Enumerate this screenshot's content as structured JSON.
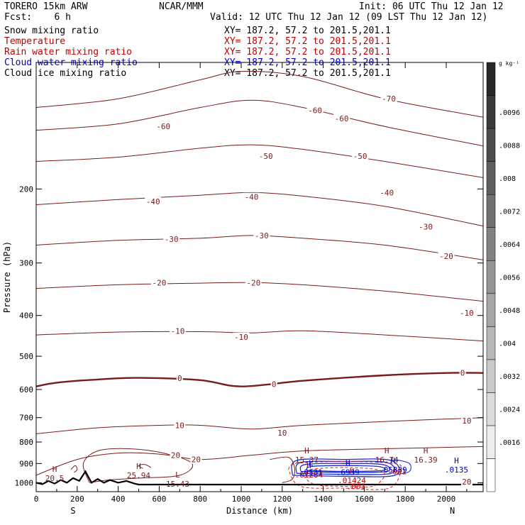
{
  "header": {
    "model": "TORERO 15km ARW",
    "org": "NCAR/MMM",
    "init": "Init: 06 UTC Thu 12 Jan 12",
    "fcst": "Fcst:    6 h",
    "valid": "Valid: 12 UTC Thu 12 Jan 12 (09 LST Thu 12 Jan 12)",
    "fields": [
      {
        "name": "Snow mixing ratio",
        "xy": "XY= 187.2, 57.2 to 201.5,201.1",
        "color": "#000000"
      },
      {
        "name": "Temperature",
        "xy": "XY= 187.2, 57.2 to 201.5,201.1",
        "color": "#c00000"
      },
      {
        "name": "Rain water mixing ratio",
        "xy": "XY= 187.2, 57.2 to 201.5,201.1",
        "color": "#c00000"
      },
      {
        "name": "Cloud water mixing ratio",
        "xy": "XY= 187.2, 57.2 to 201.5,201.1",
        "color": "#0000c0"
      },
      {
        "name": "Cloud ice mixing ratio",
        "xy": "XY= 187.2, 57.2 to 201.5,201.1",
        "color": "#000000"
      }
    ]
  },
  "chart_data": {
    "type": "contour",
    "xlabel": "Distance (km)",
    "ylabel": "Pressure (hPa)",
    "x_ticks": [
      0,
      200,
      400,
      600,
      800,
      1000,
      1200,
      1400,
      1600,
      1800,
      2000
    ],
    "y_ticks": [
      200,
      300,
      400,
      500,
      600,
      700,
      800,
      900,
      1000
    ],
    "xlim": [
      0,
      2180
    ],
    "ylim": [
      1050,
      100
    ],
    "y_scale": "log",
    "x_end_labels": {
      "left": "S",
      "right": "N"
    },
    "colorbar": {
      "unit": "g kg⁻¹",
      "ticks": [
        ".0016",
        ".0024",
        ".0032",
        ".004",
        ".0048",
        ".0056",
        ".0064",
        ".0072",
        ".008",
        ".0088",
        ".0096"
      ]
    },
    "temperature_contours": [
      {
        "label": "-70",
        "label_at": [
          1720,
          122
        ],
        "points": [
          [
            0,
            128
          ],
          [
            400,
            122
          ],
          [
            800,
            110
          ],
          [
            1000,
            105
          ],
          [
            1300,
            108
          ],
          [
            1700,
            122
          ],
          [
            2180,
            135
          ]
        ]
      },
      {
        "label": "-60",
        "label_at": [
          620,
          142
        ],
        "points": [
          [
            0,
            145
          ],
          [
            400,
            140
          ],
          [
            800,
            128
          ],
          [
            1050,
            123
          ],
          [
            1300,
            128
          ],
          [
            1700,
            142
          ],
          [
            2180,
            158
          ]
        ]
      },
      {
        "label": "-60",
        "label_at": [
          1360,
          130
        ],
        "points": []
      },
      {
        "label": "-60",
        "label_at": [
          1490,
          136
        ],
        "points": []
      },
      {
        "label": "-50",
        "label_at": [
          1120,
          167
        ],
        "points": [
          [
            0,
            172
          ],
          [
            400,
            168
          ],
          [
            800,
            160
          ],
          [
            1050,
            157
          ],
          [
            1300,
            161
          ],
          [
            1700,
            172
          ],
          [
            2180,
            188
          ]
        ]
      },
      {
        "label": "-50",
        "label_at": [
          1580,
          167
        ],
        "points": []
      },
      {
        "label": "-40",
        "label_at": [
          570,
          214
        ],
        "points": [
          [
            0,
            218
          ],
          [
            400,
            212
          ],
          [
            800,
            207
          ],
          [
            1050,
            204
          ],
          [
            1300,
            208
          ],
          [
            1700,
            220
          ],
          [
            2180,
            245
          ]
        ]
      },
      {
        "label": "-40",
        "label_at": [
          1050,
          209
        ],
        "points": []
      },
      {
        "label": "-40",
        "label_at": [
          1710,
          204
        ],
        "points": []
      },
      {
        "label": "-30",
        "label_at": [
          660,
          263
        ],
        "points": [
          [
            0,
            272
          ],
          [
            400,
            265
          ],
          [
            800,
            262
          ],
          [
            1050,
            258
          ],
          [
            1300,
            262
          ],
          [
            1700,
            272
          ],
          [
            2180,
            295
          ]
        ]
      },
      {
        "label": "-30",
        "label_at": [
          1100,
          258
        ],
        "points": []
      },
      {
        "label": "-30",
        "label_at": [
          1900,
          246
        ],
        "points": []
      },
      {
        "label": "-20",
        "label_at": [
          600,
          334
        ],
        "points": [
          [
            0,
            345
          ],
          [
            400,
            338
          ],
          [
            800,
            335
          ],
          [
            1050,
            334
          ],
          [
            1300,
            338
          ],
          [
            1700,
            350
          ],
          [
            2180,
            370
          ]
        ]
      },
      {
        "label": "-20",
        "label_at": [
          1060,
          334
        ],
        "points": []
      },
      {
        "label": "-20",
        "label_at": [
          2000,
          289
        ],
        "points": []
      },
      {
        "label": "-10",
        "label_at": [
          690,
          435
        ],
        "points": [
          [
            0,
            445
          ],
          [
            400,
            438
          ],
          [
            800,
            437
          ],
          [
            1050,
            440
          ],
          [
            1300,
            435
          ],
          [
            1700,
            445
          ],
          [
            2180,
            460
          ]
        ]
      },
      {
        "label": "-10",
        "label_at": [
          1000,
          450
        ],
        "points": []
      },
      {
        "label": "-10",
        "label_at": [
          2100,
          394
        ],
        "points": []
      },
      {
        "label": "0",
        "label_at": [
          700,
          564
        ],
        "points": [
          [
            0,
            590
          ],
          [
            100,
            578
          ],
          [
            300,
            568
          ],
          [
            500,
            563
          ],
          [
            800,
            570
          ],
          [
            1000,
            590
          ],
          [
            1300,
            572
          ],
          [
            1700,
            555
          ],
          [
            2000,
            548
          ],
          [
            2180,
            548
          ]
        ],
        "bold": true
      },
      {
        "label": "0",
        "label_at": [
          1160,
          583
        ],
        "points": []
      },
      {
        "label": "0",
        "label_at": [
          2080,
          548
        ],
        "points": []
      },
      {
        "label": "10",
        "label_at": [
          700,
          730
        ],
        "points": [
          [
            0,
            765
          ],
          [
            300,
            740
          ],
          [
            600,
            730
          ],
          [
            800,
            730
          ],
          [
            1050,
            745
          ],
          [
            1300,
            730
          ],
          [
            1700,
            715
          ],
          [
            2180,
            700
          ]
        ]
      },
      {
        "label": "10",
        "label_at": [
          1200,
          760
        ],
        "points": []
      },
      {
        "label": "10",
        "label_at": [
          2100,
          712
        ],
        "points": []
      },
      {
        "label": "20",
        "label_at": [
          680,
          860
        ],
        "points": [
          [
            0,
            960
          ],
          [
            200,
            880
          ],
          [
            400,
            850
          ],
          [
            600,
            855
          ],
          [
            800,
            880
          ],
          [
            1050,
            860
          ],
          [
            1300,
            840
          ],
          [
            1700,
            830
          ],
          [
            2180,
            820
          ]
        ]
      },
      {
        "label": "20",
        "label_at": [
          780,
          880
        ],
        "points": []
      },
      {
        "label": "20",
        "label_at": [
          2100,
          995
        ],
        "points": []
      }
    ],
    "extrema": [
      {
        "type": "H",
        "value": "20.5",
        "x": 90,
        "p": 950,
        "color": "#7a1b1b"
      },
      {
        "type": "H",
        "value": "25.94",
        "x": 500,
        "p": 935,
        "color": "#7a1b1b"
      },
      {
        "type": "L",
        "value": "15.43",
        "x": 690,
        "p": 980,
        "color": "#7a1b1b"
      },
      {
        "type": "H",
        "value": "15.37",
        "x": 1320,
        "p": 858,
        "color": "#7a1b1b"
      },
      {
        "type": "H",
        "value": "16.74",
        "x": 1710,
        "p": 858,
        "color": "#7a1b1b"
      },
      {
        "type": "H",
        "value": "16.39",
        "x": 1900,
        "p": 858,
        "color": "#7a1b1b"
      },
      {
        "type": "H",
        "value": ".01284",
        "x": 1330,
        "p": 930,
        "color": "#c00000"
      },
      {
        "type": "H",
        "value": ".01424",
        "x": 1540,
        "p": 960,
        "color": "#c00000"
      },
      {
        "type": "L",
        "value": ".0131",
        "x": 1340,
        "p": 918,
        "color": "#0000c0"
      },
      {
        "type": "H",
        "value": ".6939",
        "x": 1520,
        "p": 918,
        "color": "#0000c0"
      },
      {
        "type": "H",
        "value": ".05839",
        "x": 1740,
        "p": 905,
        "color": "#0000c0"
      },
      {
        "type": "H",
        "value": ".0135",
        "x": 2050,
        "p": 905,
        "color": "#0000c0"
      }
    ],
    "rain_labels": [
      {
        "text": ".001",
        "x": 1760,
        "p": 940
      },
      {
        "text": ".001",
        "x": 1560,
        "p": 1020
      }
    ],
    "terrain": [
      [
        0,
        1000
      ],
      [
        30,
        1008
      ],
      [
        60,
        990
      ],
      [
        90,
        1005
      ],
      [
        120,
        985
      ],
      [
        150,
        1000
      ],
      [
        180,
        975
      ],
      [
        210,
        990
      ],
      [
        240,
        940
      ],
      [
        270,
        1000
      ],
      [
        300,
        980
      ],
      [
        330,
        1000
      ],
      [
        360,
        985
      ],
      [
        400,
        1000
      ],
      [
        440,
        990
      ],
      [
        480,
        1005
      ],
      [
        500,
        1010
      ],
      [
        2180,
        1010
      ]
    ]
  }
}
